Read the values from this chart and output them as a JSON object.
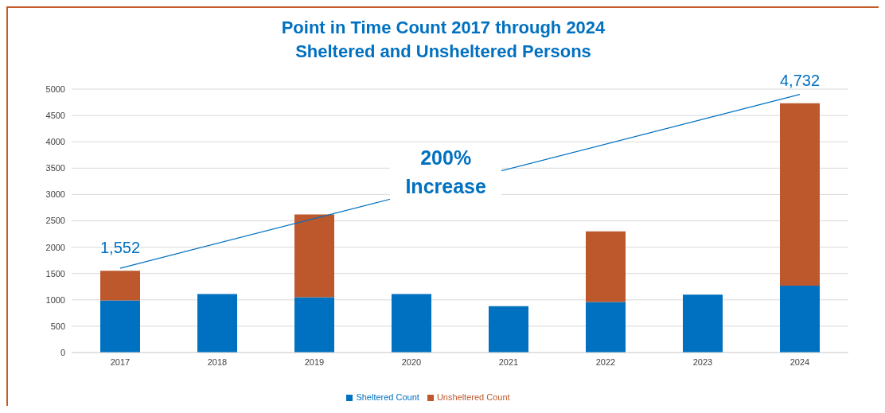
{
  "chart_data": {
    "type": "bar",
    "title": "Point in Time Count 2017 through 2024",
    "subtitle": "Sheltered and Unsheltered Persons",
    "categories": [
      "2017",
      "2018",
      "2019",
      "2020",
      "2021",
      "2022",
      "2023",
      "2024"
    ],
    "stacked": true,
    "series": [
      {
        "name": "Sheltered Count",
        "color": "#0070c0",
        "values": [
          990,
          1110,
          1050,
          1110,
          880,
          960,
          1100,
          1270
        ]
      },
      {
        "name": "Unsheltered Count",
        "color": "#bc582c",
        "values": [
          562,
          null,
          1570,
          null,
          null,
          1340,
          null,
          3462
        ]
      },
      {
        "type": "line",
        "color": "#0070c0",
        "values": [
          1600,
          null,
          null,
          null,
          null,
          null,
          null,
          4900
        ]
      }
    ],
    "ylim": [
      0,
      5000
    ],
    "yticks": [
      0,
      500,
      1000,
      1500,
      2000,
      2500,
      3000,
      3500,
      4000,
      4500,
      5000
    ],
    "grid": "y",
    "legend": "bottom",
    "annotations": [
      {
        "text": "1,552",
        "x": "2017",
        "y": 1552
      },
      {
        "text": "4,732",
        "x": "2024",
        "y": 4732
      },
      "200% Increase"
    ]
  }
}
